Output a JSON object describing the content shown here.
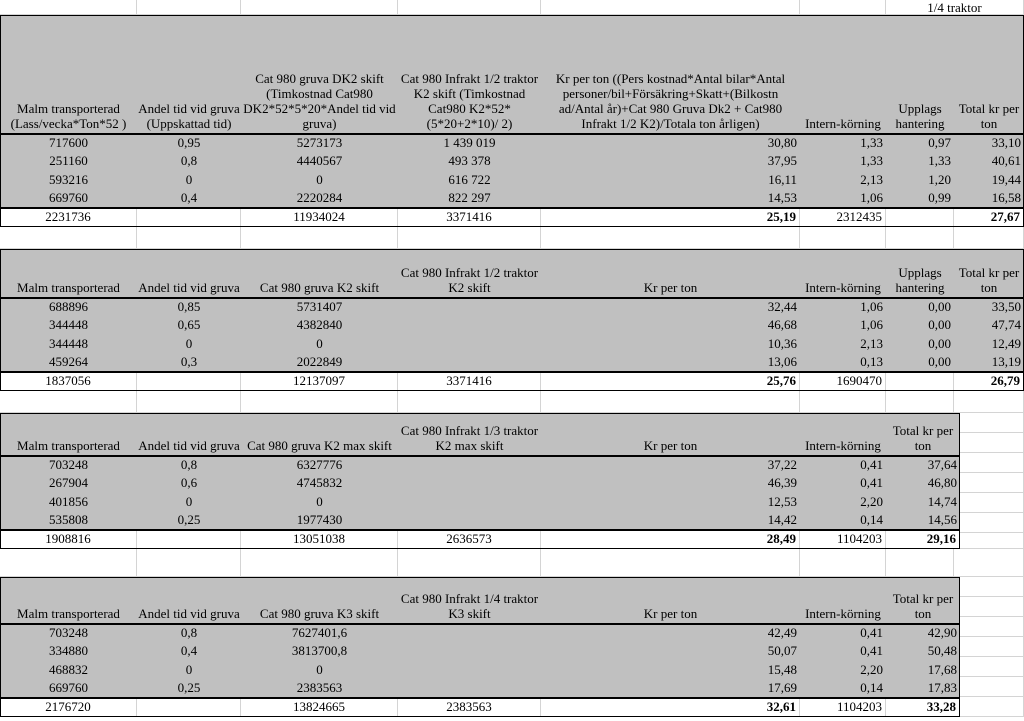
{
  "top_note": "1/4 traktor",
  "tables": [
    {
      "headers": [
        "Malm transporterad (Lass/vecka*Ton*52 )",
        "Andel tid vid gruva (Uppskattad tid)",
        "Cat 980 gruva DK2 skift (Timkostnad Cat980 DK2*52*5*20*Andel tid vid gruva)",
        "Cat 980 Infrakt 1/2 traktor K2 skift (Timkostnad Cat980 K2*52*(5*20+2*10)/ 2)",
        "Kr per ton ((Pers kostnad*Antal bilar*Antal personer/bil+Försäkring+Skatt+(Bilkostn ad/Antal år)+Cat 980 Gruva Dk2 + Cat980 Infrakt 1/2 K2)/Totala ton årligen)",
        "Intern-körning",
        "Upplags hantering",
        "Total kr per ton"
      ],
      "rows": [
        [
          "717600",
          "0,95",
          "5273173",
          "1 439 019",
          "30,80",
          "1,33",
          "0,97",
          "33,10"
        ],
        [
          "251160",
          "0,8",
          "4440567",
          "493 378",
          "37,95",
          "1,33",
          "1,33",
          "40,61"
        ],
        [
          "593216",
          "0",
          "0",
          "616 722",
          "16,11",
          "2,13",
          "1,20",
          "19,44"
        ],
        [
          "669760",
          "0,4",
          "2220284",
          "822 297",
          "14,53",
          "1,06",
          "0,99",
          "16,58"
        ]
      ],
      "total": [
        "2231736",
        "",
        "11934024",
        "3371416",
        "25,19",
        "2312435",
        "",
        "27,67"
      ]
    },
    {
      "headers": [
        "Malm transporterad",
        "Andel tid vid gruva",
        "Cat 980 gruva K2 skift",
        "Cat 980 Infrakt 1/2 traktor K2 skift",
        "Kr per ton",
        "Intern-körning",
        "Upplags hantering",
        "Total kr per ton"
      ],
      "rows": [
        [
          "688896",
          "0,85",
          "5731407",
          "",
          "32,44",
          "1,06",
          "0,00",
          "33,50"
        ],
        [
          "344448",
          "0,65",
          "4382840",
          "",
          "46,68",
          "1,06",
          "0,00",
          "47,74"
        ],
        [
          "344448",
          "0",
          "0",
          "",
          "10,36",
          "2,13",
          "0,00",
          "12,49"
        ],
        [
          "459264",
          "0,3",
          "2022849",
          "",
          "13,06",
          "0,13",
          "0,00",
          "13,19"
        ]
      ],
      "total": [
        "1837056",
        "",
        "12137097",
        "3371416",
        "25,76",
        "1690470",
        "",
        "26,79"
      ]
    },
    {
      "headers": [
        "Malm transporterad",
        "Andel tid vid gruva",
        "Cat 980 gruva K2 max skift",
        "Cat 980 Infrakt 1/3 traktor K2 max skift",
        "Kr per ton",
        "Intern-körning",
        "Total kr per ton"
      ],
      "rows": [
        [
          "703248",
          "0,8",
          "6327776",
          "",
          "37,22",
          "0,41",
          "37,64"
        ],
        [
          "267904",
          "0,6",
          "4745832",
          "",
          "46,39",
          "0,41",
          "46,80"
        ],
        [
          "401856",
          "0",
          "0",
          "",
          "12,53",
          "2,20",
          "14,74"
        ],
        [
          "535808",
          "0,25",
          "1977430",
          "",
          "14,42",
          "0,14",
          "14,56"
        ]
      ],
      "total": [
        "1908816",
        "",
        "13051038",
        "2636573",
        "28,49",
        "1104203",
        "29,16"
      ]
    },
    {
      "headers": [
        "Malm transporterad",
        "Andel tid vid gruva",
        "Cat 980 gruva K3 skift",
        "Cat 980 Infrakt 1/4 traktor K3 skift",
        "Kr per ton",
        "Intern-körning",
        "Total kr per ton"
      ],
      "rows": [
        [
          "703248",
          "0,8",
          "7627401,6",
          "",
          "42,49",
          "0,41",
          "42,90"
        ],
        [
          "334880",
          "0,4",
          "3813700,8",
          "",
          "50,07",
          "0,41",
          "50,48"
        ],
        [
          "468832",
          "0",
          "0",
          "",
          "15,48",
          "2,20",
          "17,68"
        ],
        [
          "669760",
          "0,25",
          "2383563",
          "",
          "17,69",
          "0,14",
          "17,83"
        ]
      ],
      "total": [
        "2176720",
        "",
        "13824665",
        "2383563",
        "32,61",
        "1104203",
        "33,28"
      ]
    }
  ]
}
